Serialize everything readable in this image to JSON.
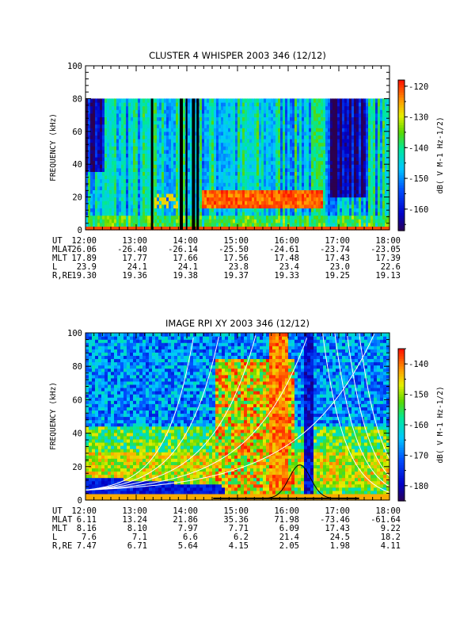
{
  "chart_data": [
    {
      "type": "heatmap",
      "title": "CLUSTER 4 WHISPER 2003 346 (12/12)",
      "ylabel": "FREQUENCY (kHz)",
      "ylim": [
        0,
        100
      ],
      "yticks": [
        "0",
        "20",
        "40",
        "60",
        "80",
        "100"
      ],
      "xticks": [
        "12:00",
        "13:00",
        "14:00",
        "15:00",
        "16:00",
        "17:00",
        "18:00"
      ],
      "xlim": [
        "12:00",
        "18:00"
      ],
      "data_top_khz": 80,
      "colorbar": {
        "label": "dB( V M-1 Hz-1/2)",
        "ticks": [
          "-120",
          "-130",
          "-140",
          "-150",
          "-160"
        ],
        "range": [
          -167,
          -118
        ]
      },
      "ephemeris": {
        "labels": [
          "UT",
          "MLAT",
          "MLT",
          "L",
          "R,RE"
        ],
        "rows": [
          [
            "12:00",
            "13:00",
            "14:00",
            "15:00",
            "16:00",
            "17:00",
            "18:00"
          ],
          [
            "-26.06",
            "-26.40",
            "-26.14",
            "-25.50",
            "-24.61",
            "-23.74",
            "-23.05"
          ],
          [
            "17.89",
            "17.77",
            "17.66",
            "17.56",
            "17.48",
            "17.43",
            "17.39"
          ],
          [
            "23.9",
            "24.1",
            "24.1",
            "23.8",
            "23.4",
            "23.0",
            "22.6"
          ],
          [
            "19.30",
            "19.36",
            "19.38",
            "19.37",
            "19.33",
            "19.25",
            "19.13"
          ]
        ]
      }
    },
    {
      "type": "heatmap",
      "title": "IMAGE RPI XY 2003 346 (12/12)",
      "ylabel": "FREQUENCY (kHz)",
      "ylim": [
        0,
        100
      ],
      "yticks": [
        "0",
        "20",
        "40",
        "60",
        "80",
        "100"
      ],
      "xticks": [
        "12:00",
        "13:00",
        "14:00",
        "15:00",
        "16:00",
        "17:00",
        "18:00"
      ],
      "xlim": [
        "12:00",
        "18:00"
      ],
      "colorbar": {
        "label": "dB( V M-1 Hz-1/2)",
        "ticks": [
          "-140",
          "-150",
          "-160",
          "-170",
          "-180"
        ],
        "range": [
          -185,
          -135
        ]
      },
      "ephemeris": {
        "labels": [
          "UT",
          "MLAT",
          "MLT",
          "L",
          "R,RE"
        ],
        "rows": [
          [
            "12:00",
            "13:00",
            "14:00",
            "15:00",
            "16:00",
            "17:00",
            "18:00"
          ],
          [
            "6.11",
            "13.24",
            "21.86",
            "35.36",
            "71.98",
            "-73.46",
            "-61.64"
          ],
          [
            "8.16",
            "8.10",
            "7.97",
            "7.71",
            "6.09",
            "17.43",
            "9.22"
          ],
          [
            "7.6",
            "7.1",
            "6.6",
            "6.2",
            "21.4",
            "24.5",
            "18.2"
          ],
          [
            "7.47",
            "6.71",
            "5.64",
            "4.15",
            "2.05",
            "1.98",
            "4.11"
          ]
        ]
      }
    }
  ]
}
